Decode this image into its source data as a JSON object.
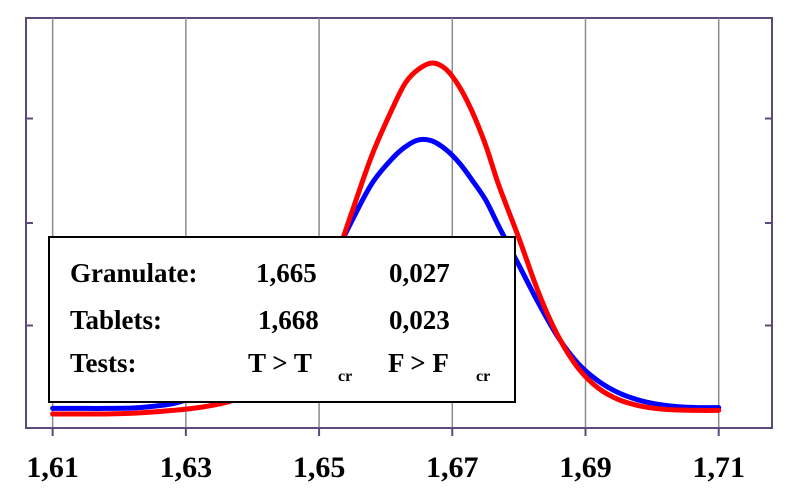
{
  "chart_data": {
    "type": "line",
    "title": "",
    "xlabel": "",
    "ylabel": "",
    "xlim": [
      1.606,
      1.718
    ],
    "ylim": [
      0,
      1
    ],
    "grid": true,
    "x_ticks": [
      {
        "value": 1.61,
        "label": "1,61"
      },
      {
        "value": 1.63,
        "label": "1,63"
      },
      {
        "value": 1.65,
        "label": "1,65"
      },
      {
        "value": 1.67,
        "label": "1,67"
      },
      {
        "value": 1.69,
        "label": "1,69"
      },
      {
        "value": 1.71,
        "label": "1,71"
      }
    ],
    "series": [
      {
        "color": "#0000ff",
        "points": [
          [
            1.61,
            0.019
          ],
          [
            1.614,
            0.019
          ],
          [
            1.618,
            0.019
          ],
          [
            1.622,
            0.02
          ],
          [
            1.625,
            0.024
          ],
          [
            1.628,
            0.031
          ],
          [
            1.631,
            0.045
          ],
          [
            1.634,
            0.058
          ],
          [
            1.637,
            0.079
          ],
          [
            1.64,
            0.106
          ],
          [
            1.643,
            0.15
          ],
          [
            1.646,
            0.212
          ],
          [
            1.649,
            0.288
          ],
          [
            1.652,
            0.391
          ],
          [
            1.655,
            0.493
          ],
          [
            1.658,
            0.586
          ],
          [
            1.661,
            0.647
          ],
          [
            1.663,
            0.677
          ],
          [
            1.665,
            0.694
          ],
          [
            1.667,
            0.691
          ],
          [
            1.669,
            0.67
          ],
          [
            1.671,
            0.637
          ],
          [
            1.673,
            0.592
          ],
          [
            1.675,
            0.543
          ],
          [
            1.677,
            0.476
          ],
          [
            1.68,
            0.379
          ],
          [
            1.683,
            0.282
          ],
          [
            1.686,
            0.195
          ],
          [
            1.689,
            0.13
          ],
          [
            1.692,
            0.087
          ],
          [
            1.695,
            0.058
          ],
          [
            1.698,
            0.04
          ],
          [
            1.701,
            0.029
          ],
          [
            1.704,
            0.023
          ],
          [
            1.707,
            0.021
          ],
          [
            1.71,
            0.021
          ]
        ]
      },
      {
        "color": "#ff0000",
        "points": [
          [
            1.61,
            0.005
          ],
          [
            1.614,
            0.005
          ],
          [
            1.618,
            0.005
          ],
          [
            1.622,
            0.007
          ],
          [
            1.625,
            0.01
          ],
          [
            1.628,
            0.014
          ],
          [
            1.631,
            0.019
          ],
          [
            1.634,
            0.027
          ],
          [
            1.637,
            0.039
          ],
          [
            1.64,
            0.062
          ],
          [
            1.643,
            0.101
          ],
          [
            1.646,
            0.159
          ],
          [
            1.649,
            0.25
          ],
          [
            1.652,
            0.371
          ],
          [
            1.655,
            0.516
          ],
          [
            1.658,
            0.658
          ],
          [
            1.661,
            0.772
          ],
          [
            1.663,
            0.838
          ],
          [
            1.665,
            0.872
          ],
          [
            1.667,
            0.887
          ],
          [
            1.669,
            0.872
          ],
          [
            1.671,
            0.829
          ],
          [
            1.673,
            0.764
          ],
          [
            1.675,
            0.681
          ],
          [
            1.677,
            0.579
          ],
          [
            1.68,
            0.447
          ],
          [
            1.683,
            0.308
          ],
          [
            1.686,
            0.197
          ],
          [
            1.689,
            0.118
          ],
          [
            1.692,
            0.069
          ],
          [
            1.695,
            0.041
          ],
          [
            1.698,
            0.026
          ],
          [
            1.701,
            0.018
          ],
          [
            1.704,
            0.015
          ],
          [
            1.707,
            0.014
          ],
          [
            1.71,
            0.014
          ]
        ]
      }
    ],
    "legend": {
      "placement": "lower-left",
      "rows": [
        {
          "name": "Granulate:",
          "mean": "1,665",
          "sd": "0,027"
        },
        {
          "name": "Tablets:",
          "mean": "1,668",
          "sd": "0,023"
        }
      ],
      "tests": {
        "label": "Tests:",
        "t_main": "T > T",
        "t_sub": "cr",
        "f_main": "F > F",
        "f_sub": "cr"
      }
    }
  }
}
